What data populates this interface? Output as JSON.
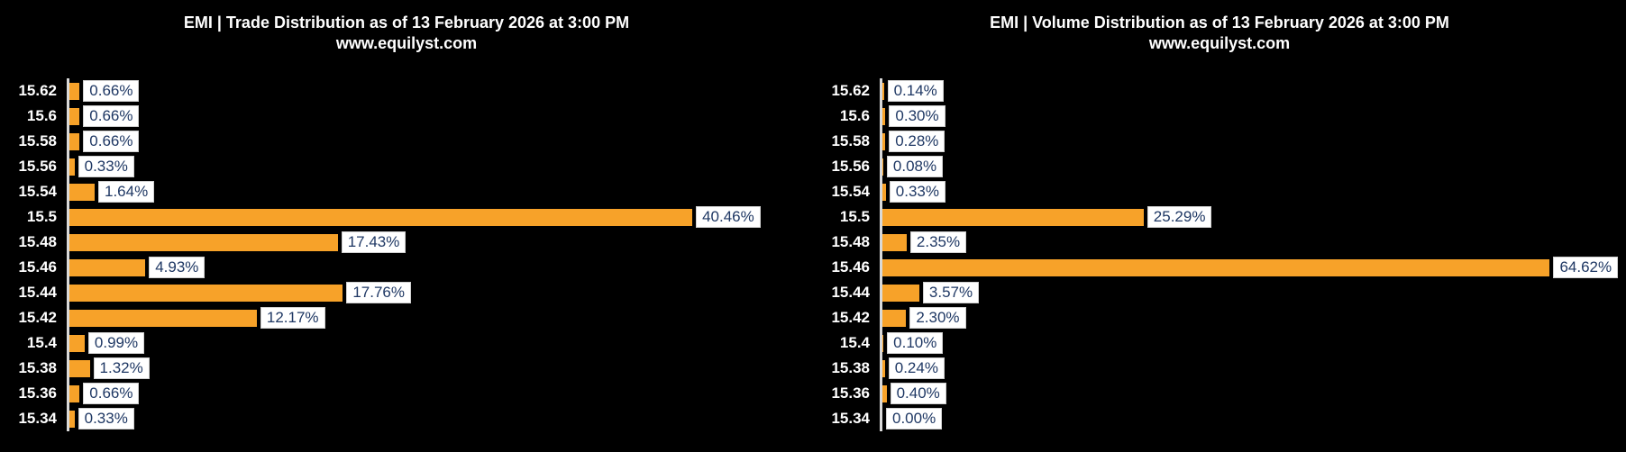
{
  "colors": {
    "background": "#000000",
    "bar": "#F7A229",
    "value_text": "#1F3864",
    "tick_text": "#FFFFFF",
    "title_text": "#FFFFFF",
    "axis_line": "#D9D9D9",
    "label_box_bg": "#FFFFFF"
  },
  "chart_data": [
    {
      "type": "bar",
      "orientation": "horizontal",
      "title": "EMI | Trade Distribution as of 13 February 2026 at 3:00 PM",
      "subtitle": "www.equilyst.com",
      "ylabel": "",
      "xlabel": "",
      "grid": false,
      "legend": false,
      "categories": [
        "15.62",
        "15.6",
        "15.58",
        "15.56",
        "15.54",
        "15.5",
        "15.48",
        "15.46",
        "15.44",
        "15.42",
        "15.4",
        "15.38",
        "15.36",
        "15.34"
      ],
      "values": [
        0.66,
        0.66,
        0.66,
        0.33,
        1.64,
        40.46,
        17.43,
        4.93,
        17.76,
        12.17,
        0.99,
        1.32,
        0.66,
        0.33
      ],
      "labels": [
        "0.66%",
        "0.66%",
        "0.66%",
        "0.33%",
        "1.64%",
        "40.46%",
        "17.43%",
        "4.93%",
        "17.76%",
        "12.17%",
        "0.99%",
        "1.32%",
        "0.66%",
        "0.33%"
      ],
      "unit": "%",
      "xlim": [
        0,
        48.3
      ],
      "bar_color": "#F7A229"
    },
    {
      "type": "bar",
      "orientation": "horizontal",
      "title": "EMI | Volume Distribution as of 13 February 2026 at 3:00 PM",
      "subtitle": "www.equilyst.com",
      "ylabel": "",
      "xlabel": "",
      "grid": false,
      "legend": false,
      "categories": [
        "15.62",
        "15.6",
        "15.58",
        "15.56",
        "15.54",
        "15.5",
        "15.48",
        "15.46",
        "15.44",
        "15.42",
        "15.4",
        "15.38",
        "15.36",
        "15.34"
      ],
      "values": [
        0.14,
        0.3,
        0.28,
        0.08,
        0.33,
        25.29,
        2.35,
        64.62,
        3.57,
        2.3,
        0.1,
        0.24,
        0.4,
        0.0
      ],
      "labels": [
        "0.14%",
        "0.30%",
        "0.28%",
        "0.08%",
        "0.33%",
        "25.29%",
        "2.35%",
        "64.62%",
        "3.57%",
        "2.30%",
        "0.10%",
        "0.24%",
        "0.40%",
        "0.00%"
      ],
      "unit": "%",
      "xlim": [
        0,
        72.0
      ],
      "bar_color": "#F7A229"
    }
  ]
}
